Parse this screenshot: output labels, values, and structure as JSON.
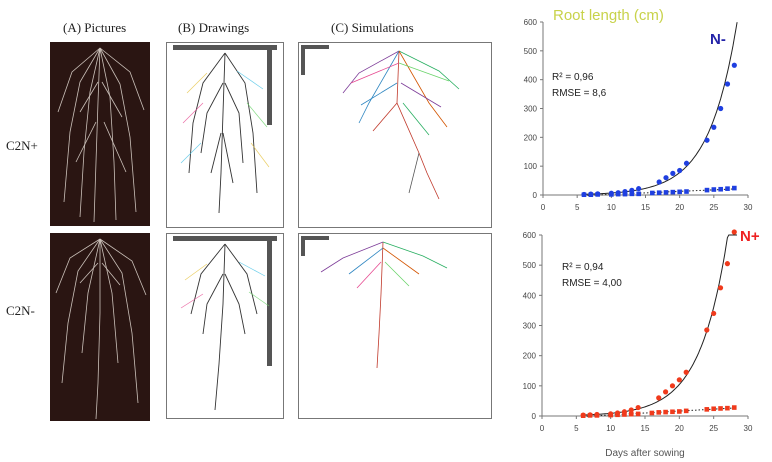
{
  "figure": {
    "column_headers": [
      "(A) Pictures",
      "(B) Drawings",
      "(C) Simulations"
    ],
    "row_labels": [
      "C2N+",
      "C2N-"
    ]
  },
  "colors": {
    "n_minus": "#1f3fe0",
    "n_plus": "#f03a1c",
    "title": "#c8d24a",
    "n_minus_label": "#2323a8",
    "n_plus_label": "#ee2222",
    "photo_bg": "#2a1512"
  },
  "chart_data": [
    {
      "type": "scatter",
      "title": "Root length (cm)",
      "panel_label": "N-",
      "stats": [
        "R² = 0,96",
        "RMSE = 8,6"
      ],
      "xlabel": "",
      "ylabel": "",
      "xlim": [
        0,
        30
      ],
      "ylim": [
        0,
        600
      ],
      "xticks": [
        0,
        5,
        10,
        15,
        20,
        25,
        30
      ],
      "yticks": [
        0,
        100,
        200,
        300,
        400,
        500,
        600
      ],
      "grid": false,
      "series": [
        {
          "x": [
            6,
            7,
            8,
            10,
            11,
            12,
            13,
            14,
            17,
            18,
            19,
            20,
            21,
            24,
            25,
            26,
            27,
            28
          ],
          "y": [
            2,
            3,
            4,
            6,
            8,
            12,
            16,
            22,
            45,
            60,
            75,
            85,
            110,
            190,
            235,
            300,
            385,
            450
          ]
        },
        {
          "x": [
            6,
            7,
            8,
            10,
            11,
            12,
            13,
            14,
            16,
            17,
            18,
            19,
            20,
            21,
            24,
            25,
            26,
            27,
            28
          ],
          "y": [
            1,
            1,
            2,
            2,
            3,
            3,
            4,
            4,
            7,
            8,
            9,
            10,
            11,
            12,
            17,
            19,
            20,
            22,
            24
          ]
        }
      ],
      "fit": {
        "style": "solid-exponential"
      },
      "fit_linear": {
        "style": "dotted"
      }
    },
    {
      "type": "scatter",
      "panel_label": "N+",
      "stats": [
        "R² = 0,94",
        "RMSE = 4,00"
      ],
      "xlabel": "Days after sowing",
      "ylabel": "",
      "xlim": [
        0,
        30
      ],
      "ylim": [
        0,
        600
      ],
      "xticks": [
        0,
        5,
        10,
        15,
        20,
        25,
        30
      ],
      "yticks": [
        0,
        100,
        200,
        300,
        400,
        500,
        600
      ],
      "grid": false,
      "series": [
        {
          "x": [
            6,
            7,
            8,
            10,
            11,
            12,
            13,
            14,
            17,
            18,
            19,
            20,
            21,
            24,
            25,
            26,
            27,
            28
          ],
          "y": [
            3,
            4,
            5,
            7,
            10,
            14,
            20,
            28,
            60,
            80,
            100,
            120,
            145,
            285,
            340,
            425,
            505,
            610
          ]
        },
        {
          "x": [
            6,
            7,
            8,
            10,
            11,
            12,
            13,
            14,
            16,
            17,
            18,
            19,
            20,
            21,
            24,
            25,
            26,
            27,
            28
          ],
          "y": [
            1,
            2,
            2,
            3,
            4,
            5,
            6,
            7,
            10,
            12,
            13,
            14,
            15,
            17,
            22,
            24,
            25,
            26,
            28
          ]
        }
      ],
      "fit": {
        "style": "solid-exponential"
      },
      "fit_linear": {
        "style": "dotted"
      }
    }
  ]
}
